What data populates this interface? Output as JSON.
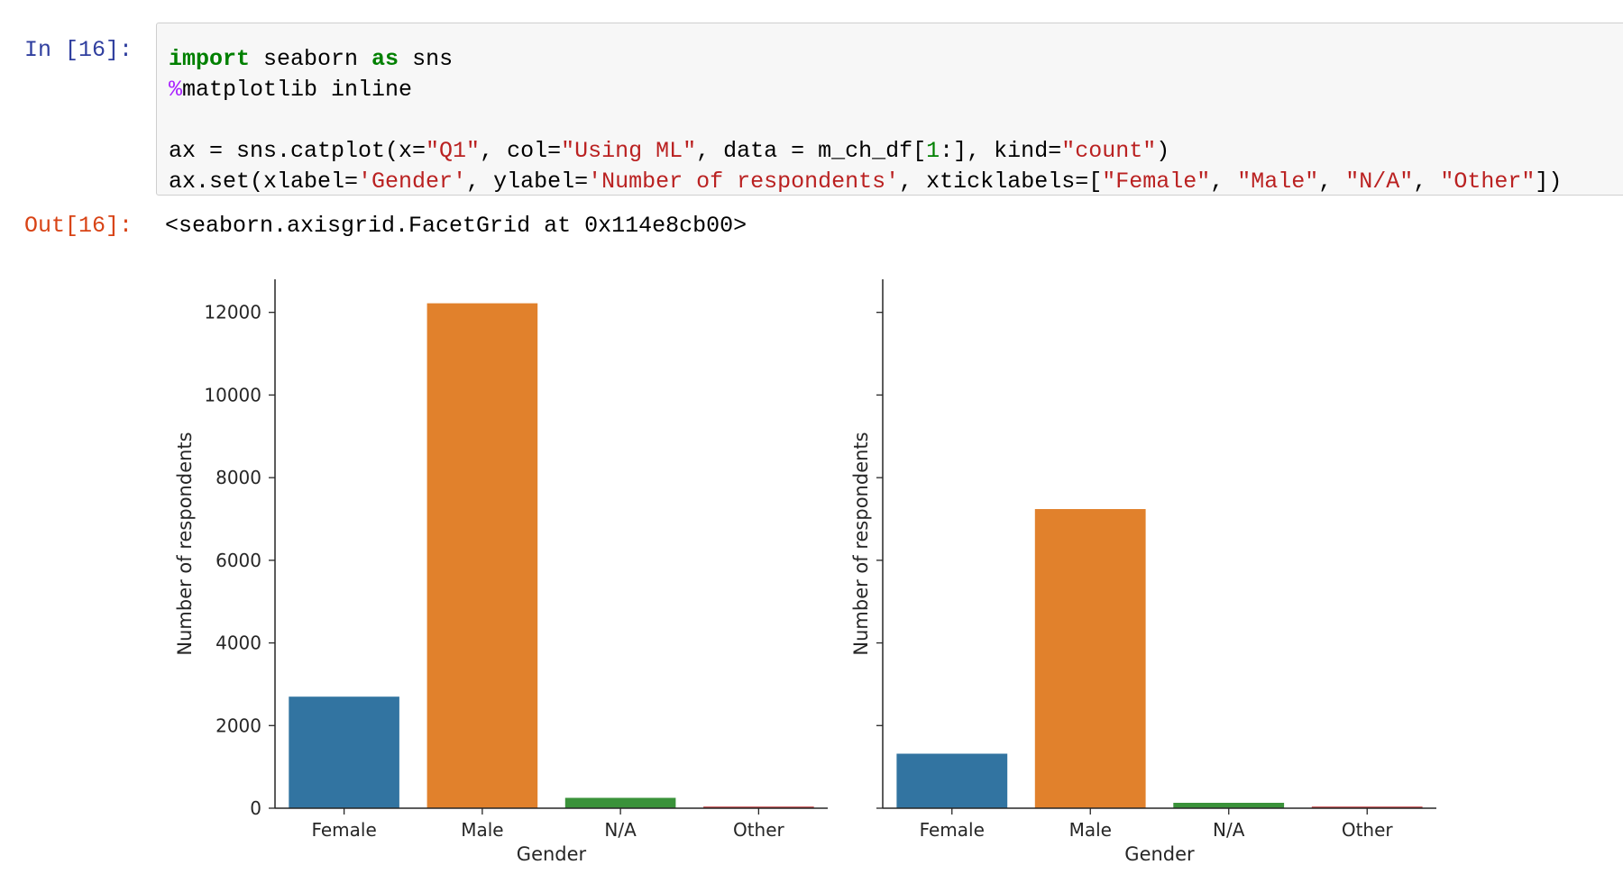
{
  "cell": {
    "in_prompt": "In [16]:",
    "out_prompt": "Out[16]:",
    "output_text": "<seaborn.axisgrid.FacetGrid at 0x114e8cb00>",
    "code": [
      [
        [
          "kw",
          "import"
        ],
        [
          "plain",
          " seaborn "
        ],
        [
          "kw",
          "as"
        ],
        [
          "plain",
          " sns"
        ]
      ],
      [
        [
          "magic",
          "%"
        ],
        [
          "plain",
          "matplotlib inline"
        ]
      ],
      [],
      [
        [
          "plain",
          "ax = sns.catplot(x="
        ],
        [
          "str",
          "\"Q1\""
        ],
        [
          "plain",
          ", col="
        ],
        [
          "str",
          "\"Using ML\""
        ],
        [
          "plain",
          ", data = m_ch_df["
        ],
        [
          "num",
          "1"
        ],
        [
          "plain",
          ":], kind="
        ],
        [
          "str",
          "\"count\""
        ],
        [
          "plain",
          ")"
        ]
      ],
      [
        [
          "plain",
          "ax.set(xlabel="
        ],
        [
          "str",
          "'Gender'"
        ],
        [
          "plain",
          ", ylabel="
        ],
        [
          "str",
          "'Number of respondents'"
        ],
        [
          "plain",
          ", xticklabels=["
        ],
        [
          "str",
          "\"Female\""
        ],
        [
          "plain",
          ", "
        ],
        [
          "str",
          "\"Male\""
        ],
        [
          "plain",
          ", "
        ],
        [
          "str",
          "\"N/A\""
        ],
        [
          "plain",
          ", "
        ],
        [
          "str",
          "\"Other\""
        ],
        [
          "plain",
          "])"
        ]
      ]
    ]
  },
  "chart_data": [
    {
      "type": "bar",
      "categories": [
        "Female",
        "Male",
        "N/A",
        "Other"
      ],
      "values": [
        2700,
        12220,
        250,
        40
      ],
      "colors": [
        "#3274a1",
        "#e1812c",
        "#3a923a",
        "#c03d3e"
      ],
      "xlabel": "Gender",
      "ylabel": "Number of respondents",
      "ylim": [
        0,
        12800
      ],
      "yticks": [
        0,
        2000,
        4000,
        6000,
        8000,
        10000,
        12000
      ],
      "ytick_labels_visible": true,
      "grid": false
    },
    {
      "type": "bar",
      "categories": [
        "Female",
        "Male",
        "N/A",
        "Other"
      ],
      "values": [
        1320,
        7240,
        130,
        40
      ],
      "colors": [
        "#3274a1",
        "#e1812c",
        "#3a923a",
        "#c03d3e"
      ],
      "xlabel": "Gender",
      "ylabel": "Number of respondents",
      "ylim": [
        0,
        12800
      ],
      "yticks": [
        0,
        2000,
        4000,
        6000,
        8000,
        10000,
        12000
      ],
      "ytick_labels_visible": false,
      "grid": false
    }
  ]
}
